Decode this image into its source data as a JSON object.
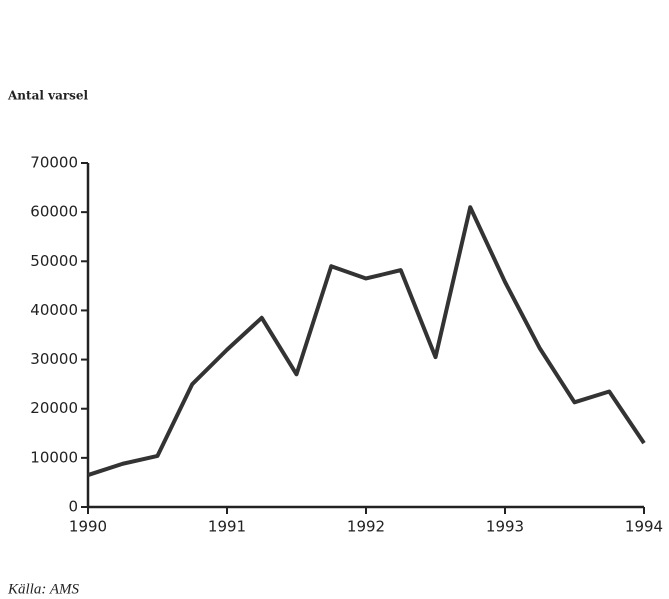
{
  "chart_data": {
    "type": "line",
    "title": "Antal varsel",
    "source": "Källa: AMS",
    "x": [
      1990,
      1990.25,
      1990.5,
      1990.75,
      1991,
      1991.25,
      1991.5,
      1991.75,
      1992,
      1992.25,
      1992.5,
      1992.75,
      1993,
      1993.25,
      1993.5,
      1993.75,
      1994
    ],
    "values": [
      6500,
      8800,
      10400,
      25000,
      32000,
      38500,
      27000,
      49000,
      46500,
      48200,
      30500,
      61000,
      45800,
      32300,
      21300,
      23500,
      13000
    ],
    "color": "#333333",
    "xlim": [
      1990,
      1994
    ],
    "xticks": [
      1990,
      1991,
      1992,
      1993,
      1994
    ],
    "ylim": [
      0,
      70000
    ],
    "yticks": [
      0,
      10000,
      20000,
      30000,
      40000,
      50000,
      60000,
      70000
    ],
    "grid": false
  }
}
